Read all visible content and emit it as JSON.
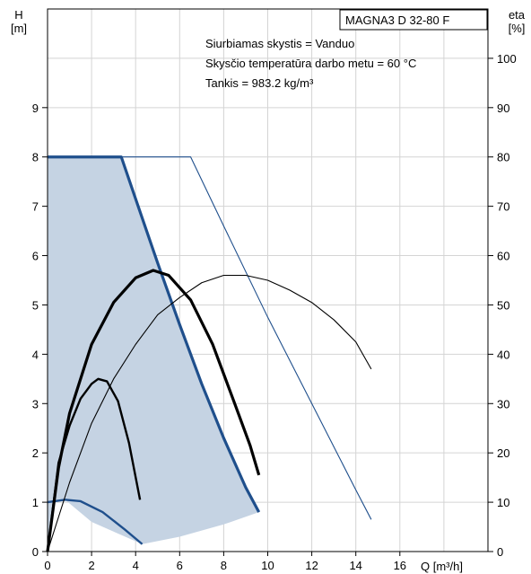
{
  "chart_data": {
    "type": "line",
    "title": "MAGNA3 D 32-80 F",
    "annotations": [
      "Siurbiamas skystis = Vanduo",
      "Skysčio temperatūra darbo metu = 60 °C",
      "Tankis = 983.2 kg/m³"
    ],
    "ylabel_left": {
      "symbol": "H",
      "unit": "[m]"
    },
    "ylabel_right": {
      "symbol": "eta",
      "unit": "[%]"
    },
    "xlabel": "Q [m³/h]",
    "xlim": [
      0,
      20
    ],
    "ylim_left": [
      0,
      11
    ],
    "ylim_right": [
      0,
      110
    ],
    "x_ticks": [
      0,
      2,
      4,
      6,
      8,
      10,
      12,
      14,
      16
    ],
    "y_left_ticks": [
      0,
      1,
      2,
      3,
      4,
      5,
      6,
      7,
      8,
      9
    ],
    "y_right_ticks": [
      0,
      10,
      20,
      30,
      40,
      50,
      60,
      70,
      80,
      90,
      100
    ],
    "grid": true,
    "operating_area": {
      "color": "#c5d3e3",
      "points": [
        [
          0,
          0
        ],
        [
          0,
          8.0
        ],
        [
          3.35,
          8.0
        ],
        [
          4.0,
          7.15
        ],
        [
          5.0,
          5.85
        ],
        [
          6.0,
          4.6
        ],
        [
          7.0,
          3.4
        ],
        [
          8.0,
          2.3
        ],
        [
          9.0,
          1.3
        ],
        [
          9.6,
          0.8
        ],
        [
          8.0,
          0.55
        ],
        [
          6.0,
          0.3
        ],
        [
          4.3,
          0.15
        ],
        [
          2.0,
          0.6
        ],
        [
          0.8,
          1.05
        ],
        [
          0.3,
          1.02
        ],
        [
          0,
          0
        ]
      ]
    },
    "series": [
      {
        "role": "max-curve",
        "axis": "H",
        "color": "#1f4f8c",
        "width": 3.2,
        "points": [
          [
            0,
            8.0
          ],
          [
            3.35,
            8.0
          ],
          [
            4.0,
            7.15
          ],
          [
            5.0,
            5.85
          ],
          [
            6.0,
            4.6
          ],
          [
            7.0,
            3.4
          ],
          [
            8.0,
            2.3
          ],
          [
            9.0,
            1.3
          ],
          [
            9.6,
            0.8
          ]
        ]
      },
      {
        "role": "max-curve-thin",
        "axis": "H",
        "color": "#1f4f8c",
        "width": 1.1,
        "points": [
          [
            3.35,
            8.0
          ],
          [
            6.5,
            8.0
          ],
          [
            8.0,
            6.6
          ],
          [
            10.0,
            4.75
          ],
          [
            12.0,
            3.0
          ],
          [
            14.0,
            1.25
          ],
          [
            14.7,
            0.65
          ]
        ]
      },
      {
        "role": "min-curve",
        "axis": "H",
        "color": "#1f4f8c",
        "width": 2.4,
        "points": [
          [
            0,
            1.0
          ],
          [
            0.8,
            1.05
          ],
          [
            1.5,
            1.02
          ],
          [
            2.5,
            0.8
          ],
          [
            3.5,
            0.45
          ],
          [
            4.3,
            0.15
          ]
        ]
      },
      {
        "role": "efficiency-max",
        "axis": "eta",
        "color": "#000000",
        "width": 3.2,
        "points": [
          [
            0,
            0
          ],
          [
            0.5,
            17
          ],
          [
            1.0,
            28
          ],
          [
            2.0,
            42
          ],
          [
            3.0,
            50.5
          ],
          [
            4.0,
            55.5
          ],
          [
            4.8,
            57
          ],
          [
            5.5,
            56
          ],
          [
            6.5,
            51
          ],
          [
            7.5,
            42
          ],
          [
            8.5,
            30
          ],
          [
            9.2,
            21.5
          ],
          [
            9.6,
            15.5
          ]
        ]
      },
      {
        "role": "efficiency-thin",
        "axis": "eta",
        "color": "#000000",
        "width": 1.1,
        "points": [
          [
            0,
            0
          ],
          [
            1.0,
            14
          ],
          [
            2.0,
            26
          ],
          [
            3.0,
            35
          ],
          [
            4.0,
            42
          ],
          [
            5.0,
            48
          ],
          [
            6.0,
            51.5
          ],
          [
            7.0,
            54.5
          ],
          [
            8.0,
            56
          ],
          [
            9.0,
            56
          ],
          [
            10.0,
            55
          ],
          [
            11.0,
            53
          ],
          [
            12.0,
            50.5
          ],
          [
            13.0,
            47
          ],
          [
            14.0,
            42.5
          ],
          [
            14.7,
            37
          ]
        ]
      },
      {
        "role": "efficiency-min",
        "axis": "eta",
        "color": "#000000",
        "width": 2.4,
        "points": [
          [
            0,
            0
          ],
          [
            0.5,
            18
          ],
          [
            1.0,
            25.5
          ],
          [
            1.5,
            31
          ],
          [
            2.0,
            34
          ],
          [
            2.3,
            35
          ],
          [
            2.7,
            34.5
          ],
          [
            3.2,
            30.5
          ],
          [
            3.7,
            22
          ],
          [
            4.2,
            10.5
          ]
        ]
      }
    ]
  }
}
